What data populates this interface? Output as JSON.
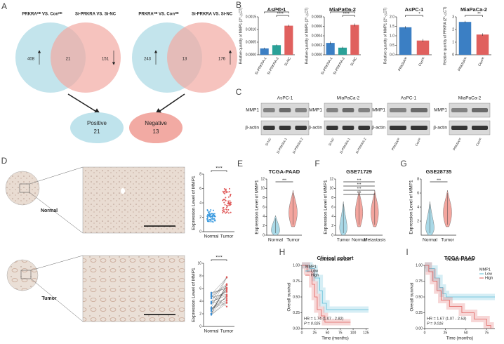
{
  "panel_labels": [
    "A",
    "B",
    "C",
    "D",
    "E",
    "F",
    "G",
    "H",
    "I"
  ],
  "venn": [
    {
      "left": "PRKRAᴼᴱ VS. Conᴼᴱ",
      "right": "Si-PRKRA VS. Si-NC",
      "counts": [
        408,
        21,
        151
      ]
    },
    {
      "left": "PRKRAᴼᴱ VS. Conᴼᴱ",
      "right": "Si-PRKRA VS. Si-NC",
      "counts": [
        243,
        13,
        176
      ]
    }
  ],
  "outcomes": [
    {
      "label": "Positive",
      "count": 21
    },
    {
      "label": "Negative",
      "count": 13
    }
  ],
  "chart_data": [
    {
      "type": "bar",
      "title": "AsPC-1",
      "ylabel": "Relative quantity of MMP1 (2^-△CT)",
      "categories": [
        "Si-PRKRA-1",
        "Si-PRKRA-2",
        "Si-NC"
      ],
      "values": [
        0.00025,
        0.00038,
        0.00115
      ],
      "errors": [
        3e-05,
        3e-05,
        4e-05
      ],
      "colors": [
        "#3b7fc4",
        "#2aa198",
        "#e0605e"
      ],
      "ylim": [
        0,
        0.0015
      ],
      "yticks": [
        {
          "value": 0,
          "label": "0.0000"
        },
        0.0005,
        {
          "value": 0.001,
          "label": "0.0010"
        },
        0.0015
      ],
      "annotations": [
        "****",
        "****"
      ]
    },
    {
      "type": "bar",
      "title": "MiaPaCa-2",
      "ylabel": "Relative quantity of MMP1 (2^-△CT)",
      "categories": [
        "Si-PRKRA-1",
        "Si-PRKRA-2",
        "Si-NC"
      ],
      "values": [
        0.00025,
        0.00015,
        0.00063
      ],
      "errors": [
        3e-05,
        2e-05,
        3e-05
      ],
      "colors": [
        "#3b7fc4",
        "#2aa198",
        "#e0605e"
      ],
      "ylim": [
        0,
        0.0008
      ],
      "yticks": [
        {
          "value": 0,
          "label": "0.0000"
        },
        0.0002,
        0.0004,
        0.0006,
        0.0008
      ],
      "annotations": [
        "****",
        "****"
      ]
    },
    {
      "type": "bar",
      "title": "AsPC-1",
      "ylabel": "Relative quantity of MMP1 (2^-△CT)",
      "categories": [
        "PRKRAᴼᴱ",
        "Conᴼᴱ"
      ],
      "values": [
        1.45,
        0.75
      ],
      "errors": [
        0.06,
        0.08
      ],
      "colors": [
        "#3b7fc4",
        "#e0605e"
      ],
      "ylim": [
        0,
        2
      ],
      "yticks": [
        {
          "value": 0,
          "label": "0.0"
        },
        0.5,
        {
          "value": 1,
          "label": "1.0"
        },
        1.5,
        {
          "value": 2,
          "label": "2.0"
        }
      ],
      "annotations": [
        "*"
      ]
    },
    {
      "type": "bar",
      "title": "MiaPaCa-2",
      "ylabel": "Relative quantity of PRKRA (2^-△CT)",
      "categories": [
        "PRKRAᴼᴱ",
        "Conᴼᴱ"
      ],
      "values": [
        2.6,
        1.6
      ],
      "errors": [
        0.08,
        0.1
      ],
      "colors": [
        "#3b7fc4",
        "#e0605e"
      ],
      "ylim": [
        0,
        3
      ],
      "yticks": [
        0,
        1,
        2,
        3
      ],
      "annotations": [
        "**"
      ]
    }
  ],
  "blots": [
    {
      "title": "AsPC-1",
      "rows": [
        "MMP1",
        "β-actin"
      ],
      "lanes": [
        "Si-NC",
        "Si-PRKRA-1",
        "Si-PRKRA-2"
      ]
    },
    {
      "title": "MiaPaCa-2",
      "rows": [
        "MMP1",
        "β-actin"
      ],
      "lanes": [
        "Si-NC",
        "Si-PRKRA-1",
        "Si-PRKRA-2"
      ]
    },
    {
      "title": "AsPC-1",
      "rows": [
        "MMP1",
        "β-actin"
      ],
      "lanes": [
        "PRKRAᴼᴱ",
        "Conᴼᴱ"
      ]
    },
    {
      "title": "MiaPaCa-2",
      "rows": [
        "MMP1",
        "β-actin"
      ],
      "lanes": [
        "PRKRAᴼᴱ",
        "Conᴼᴱ"
      ]
    }
  ],
  "ihc": {
    "rows": [
      "Normal",
      "Tumor"
    ],
    "plots": [
      {
        "ylabel": "Expression Level of MMP1",
        "categories": [
          "Normal",
          "Tumor"
        ],
        "ylim": [
          0,
          8
        ],
        "yticks": [
          0,
          2,
          4,
          6,
          8
        ],
        "sig": "****"
      },
      {
        "ylabel": "Expression Level of MMP1",
        "categories": [
          "Normal",
          "Tumor"
        ],
        "ylim": [
          0,
          10
        ],
        "yticks": [
          0,
          2,
          4,
          6,
          8,
          10
        ],
        "sig": "****"
      }
    ]
  },
  "violins": [
    {
      "title": "TCGA-PAAD",
      "ylabel": "Expression Level of MMP1",
      "categories": [
        "Normal",
        "Tumor"
      ],
      "ylim": [
        0,
        12
      ],
      "yticks": [
        0,
        2,
        4,
        6,
        8,
        10,
        12
      ],
      "sig": [
        "***"
      ]
    },
    {
      "title": "GSE71729",
      "ylabel": "Expression Level of MMP1",
      "categories": [
        "Tumor",
        "Normal",
        "Metastasis"
      ],
      "ylim": [
        0,
        12
      ],
      "yticks": [
        0,
        2,
        4,
        6,
        8,
        10,
        12
      ],
      "sig": [
        "***",
        "***",
        "***",
        "***"
      ]
    },
    {
      "title": "GSE28735",
      "ylabel": "Expression Level of MMP1",
      "categories": [
        "Normal",
        "Tumor"
      ],
      "ylim": [
        0,
        8
      ],
      "yticks": [
        2,
        4,
        6,
        8
      ],
      "sig": [
        "***"
      ]
    }
  ],
  "survival": [
    {
      "title": "Clinical cohort",
      "legend_title": "MMP1",
      "groups": [
        "Low",
        "High"
      ],
      "xlabel": "Time (months)",
      "ylabel": "Overall survival",
      "hr": "HR = 1.74 (1.07 - 2.82)",
      "p": "P = 0.025",
      "xlim": [
        0,
        130
      ],
      "xticks": [
        0,
        25,
        50,
        75,
        100,
        125
      ],
      "ylim": [
        0,
        1
      ],
      "yticks": [
        {
          "value": 0,
          "label": "0.00"
        },
        0.25,
        {
          "value": 0.5,
          "label": "0.50"
        },
        0.75,
        {
          "value": 1,
          "label": "1.00"
        }
      ]
    },
    {
      "title": "TCGA-PAAD",
      "legend_title": "MMP1",
      "groups": [
        "Low",
        "High"
      ],
      "xlabel": "Time (months)",
      "ylabel": "Overall survival",
      "hr": "HR = 1.67 (1.07 - 2.53)",
      "p": "P = 0.016",
      "xlim": [
        0,
        85
      ],
      "xticks": [
        0,
        25,
        50,
        75
      ],
      "ylim": [
        0,
        1
      ],
      "yticks": [
        {
          "value": 0,
          "label": "0.00"
        },
        0.25,
        {
          "value": 0.5,
          "label": "0.50"
        },
        0.75,
        {
          "value": 1,
          "label": "1.00"
        }
      ]
    }
  ]
}
